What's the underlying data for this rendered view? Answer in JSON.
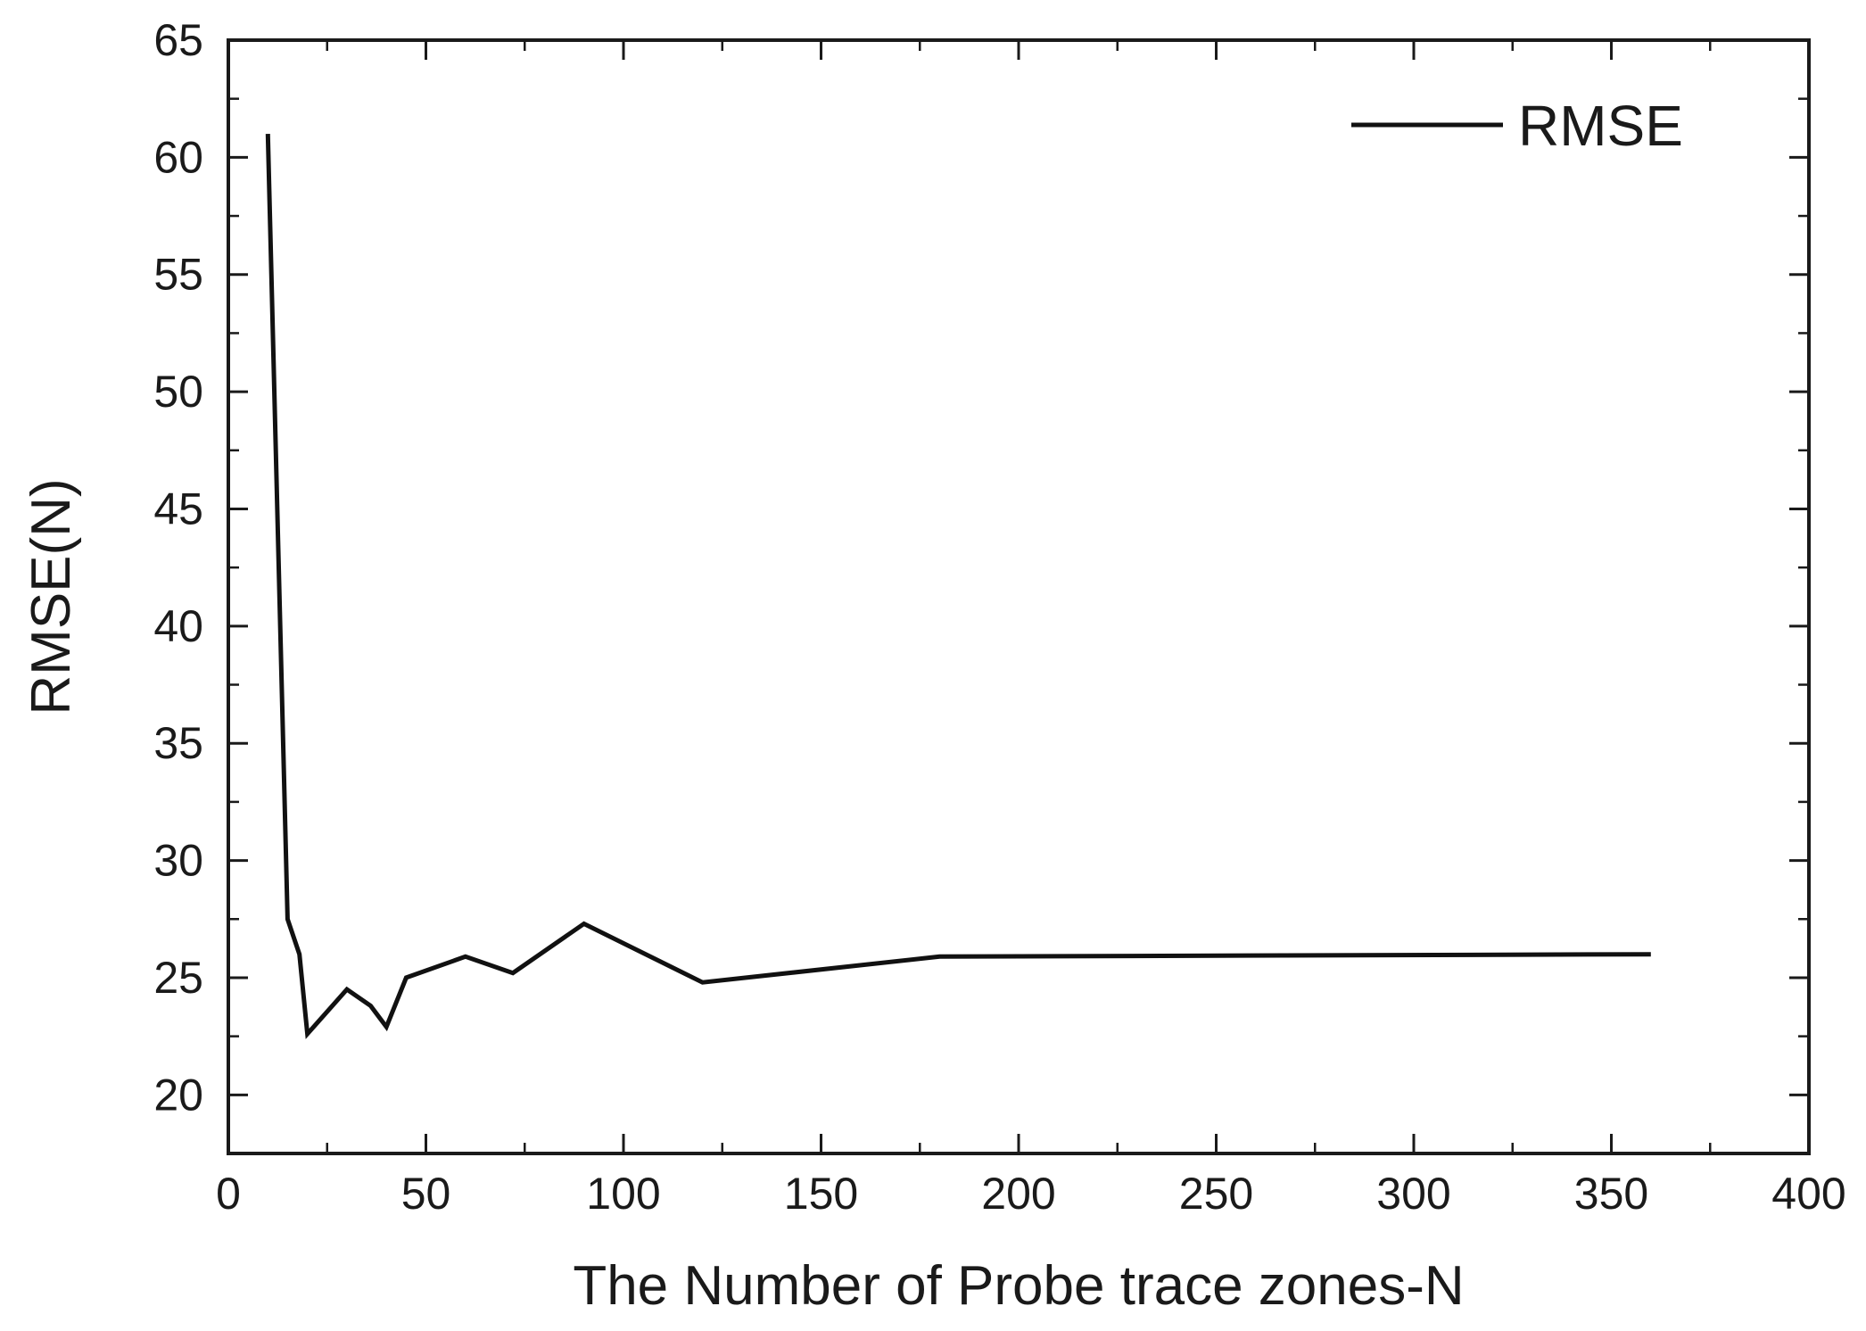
{
  "chart_data": {
    "type": "line",
    "title": "",
    "xlabel": "The Number of Probe trace zones-N",
    "ylabel": "RMSE(N)",
    "xlim": [
      0,
      400
    ],
    "ylim": [
      17.5,
      65
    ],
    "xticks": [
      0,
      50,
      100,
      150,
      200,
      250,
      300,
      350,
      400
    ],
    "yticks": [
      20,
      25,
      30,
      35,
      40,
      45,
      50,
      55,
      60,
      65
    ],
    "grid": false,
    "legend_position": "top-right",
    "series": [
      {
        "name": "RMSE",
        "color": "#111111",
        "x": [
          10,
          15,
          18,
          20,
          30,
          36,
          40,
          45,
          60,
          72,
          90,
          120,
          180,
          360
        ],
        "y": [
          61,
          27.5,
          26,
          22.6,
          24.5,
          23.8,
          22.9,
          25,
          25.9,
          25.2,
          27.3,
          24.8,
          25.9,
          26
        ]
      }
    ]
  }
}
